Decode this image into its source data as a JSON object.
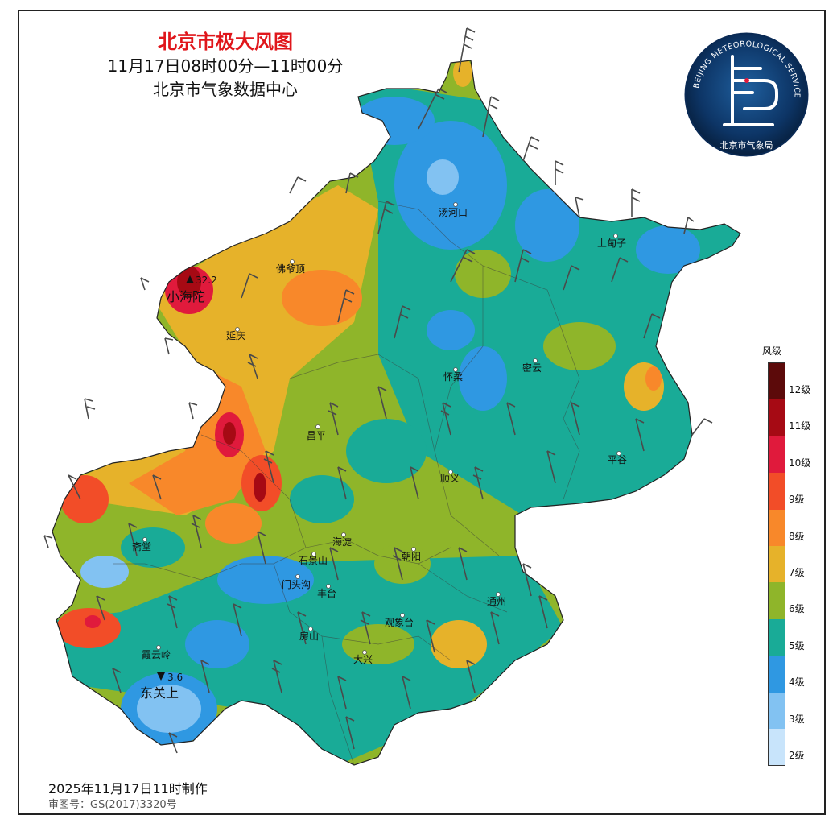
{
  "title": "北京市极大风图",
  "time_range": "11月17日08时00分—11时00分",
  "producer": "北京市气象数据中心",
  "logo": {
    "ring_text": "BEIJING METEOROLOGICAL SERVICE",
    "bureau_text": "北京市气象局"
  },
  "legend": {
    "title": "风级",
    "levels": [
      {
        "label": "12级",
        "color": "#5c0a0a"
      },
      {
        "label": "11级",
        "color": "#a60a14"
      },
      {
        "label": "10级",
        "color": "#e01a3c"
      },
      {
        "label": "9级",
        "color": "#f24d28"
      },
      {
        "label": "8级",
        "color": "#f8882a"
      },
      {
        "label": "7级",
        "color": "#e6b22a"
      },
      {
        "label": "6级",
        "color": "#8fb52a"
      },
      {
        "label": "5级",
        "color": "#19ab97"
      },
      {
        "label": "4级",
        "color": "#2f98e2"
      },
      {
        "label": "3级",
        "color": "#82c2f2"
      },
      {
        "label": "2级",
        "color": "#c8e4fb"
      }
    ]
  },
  "places": [
    "汤河口",
    "上甸子",
    "佛爷顶",
    "延庆",
    "怀柔",
    "密云",
    "昌平",
    "平谷",
    "顺义",
    "斋堂",
    "海淀",
    "朝阳",
    "石景山",
    "门头沟",
    "丰台",
    "通州",
    "观象台",
    "房山",
    "大兴",
    "霞云岭"
  ],
  "extremes": [
    {
      "type": "max",
      "value": "32.2",
      "station": "小海陀"
    },
    {
      "type": "min",
      "value": "3.6",
      "station": "东关上"
    }
  ],
  "footer": {
    "made": "2025年11月17日11时制作",
    "approval": "审图号：GS(2017)3320号"
  }
}
